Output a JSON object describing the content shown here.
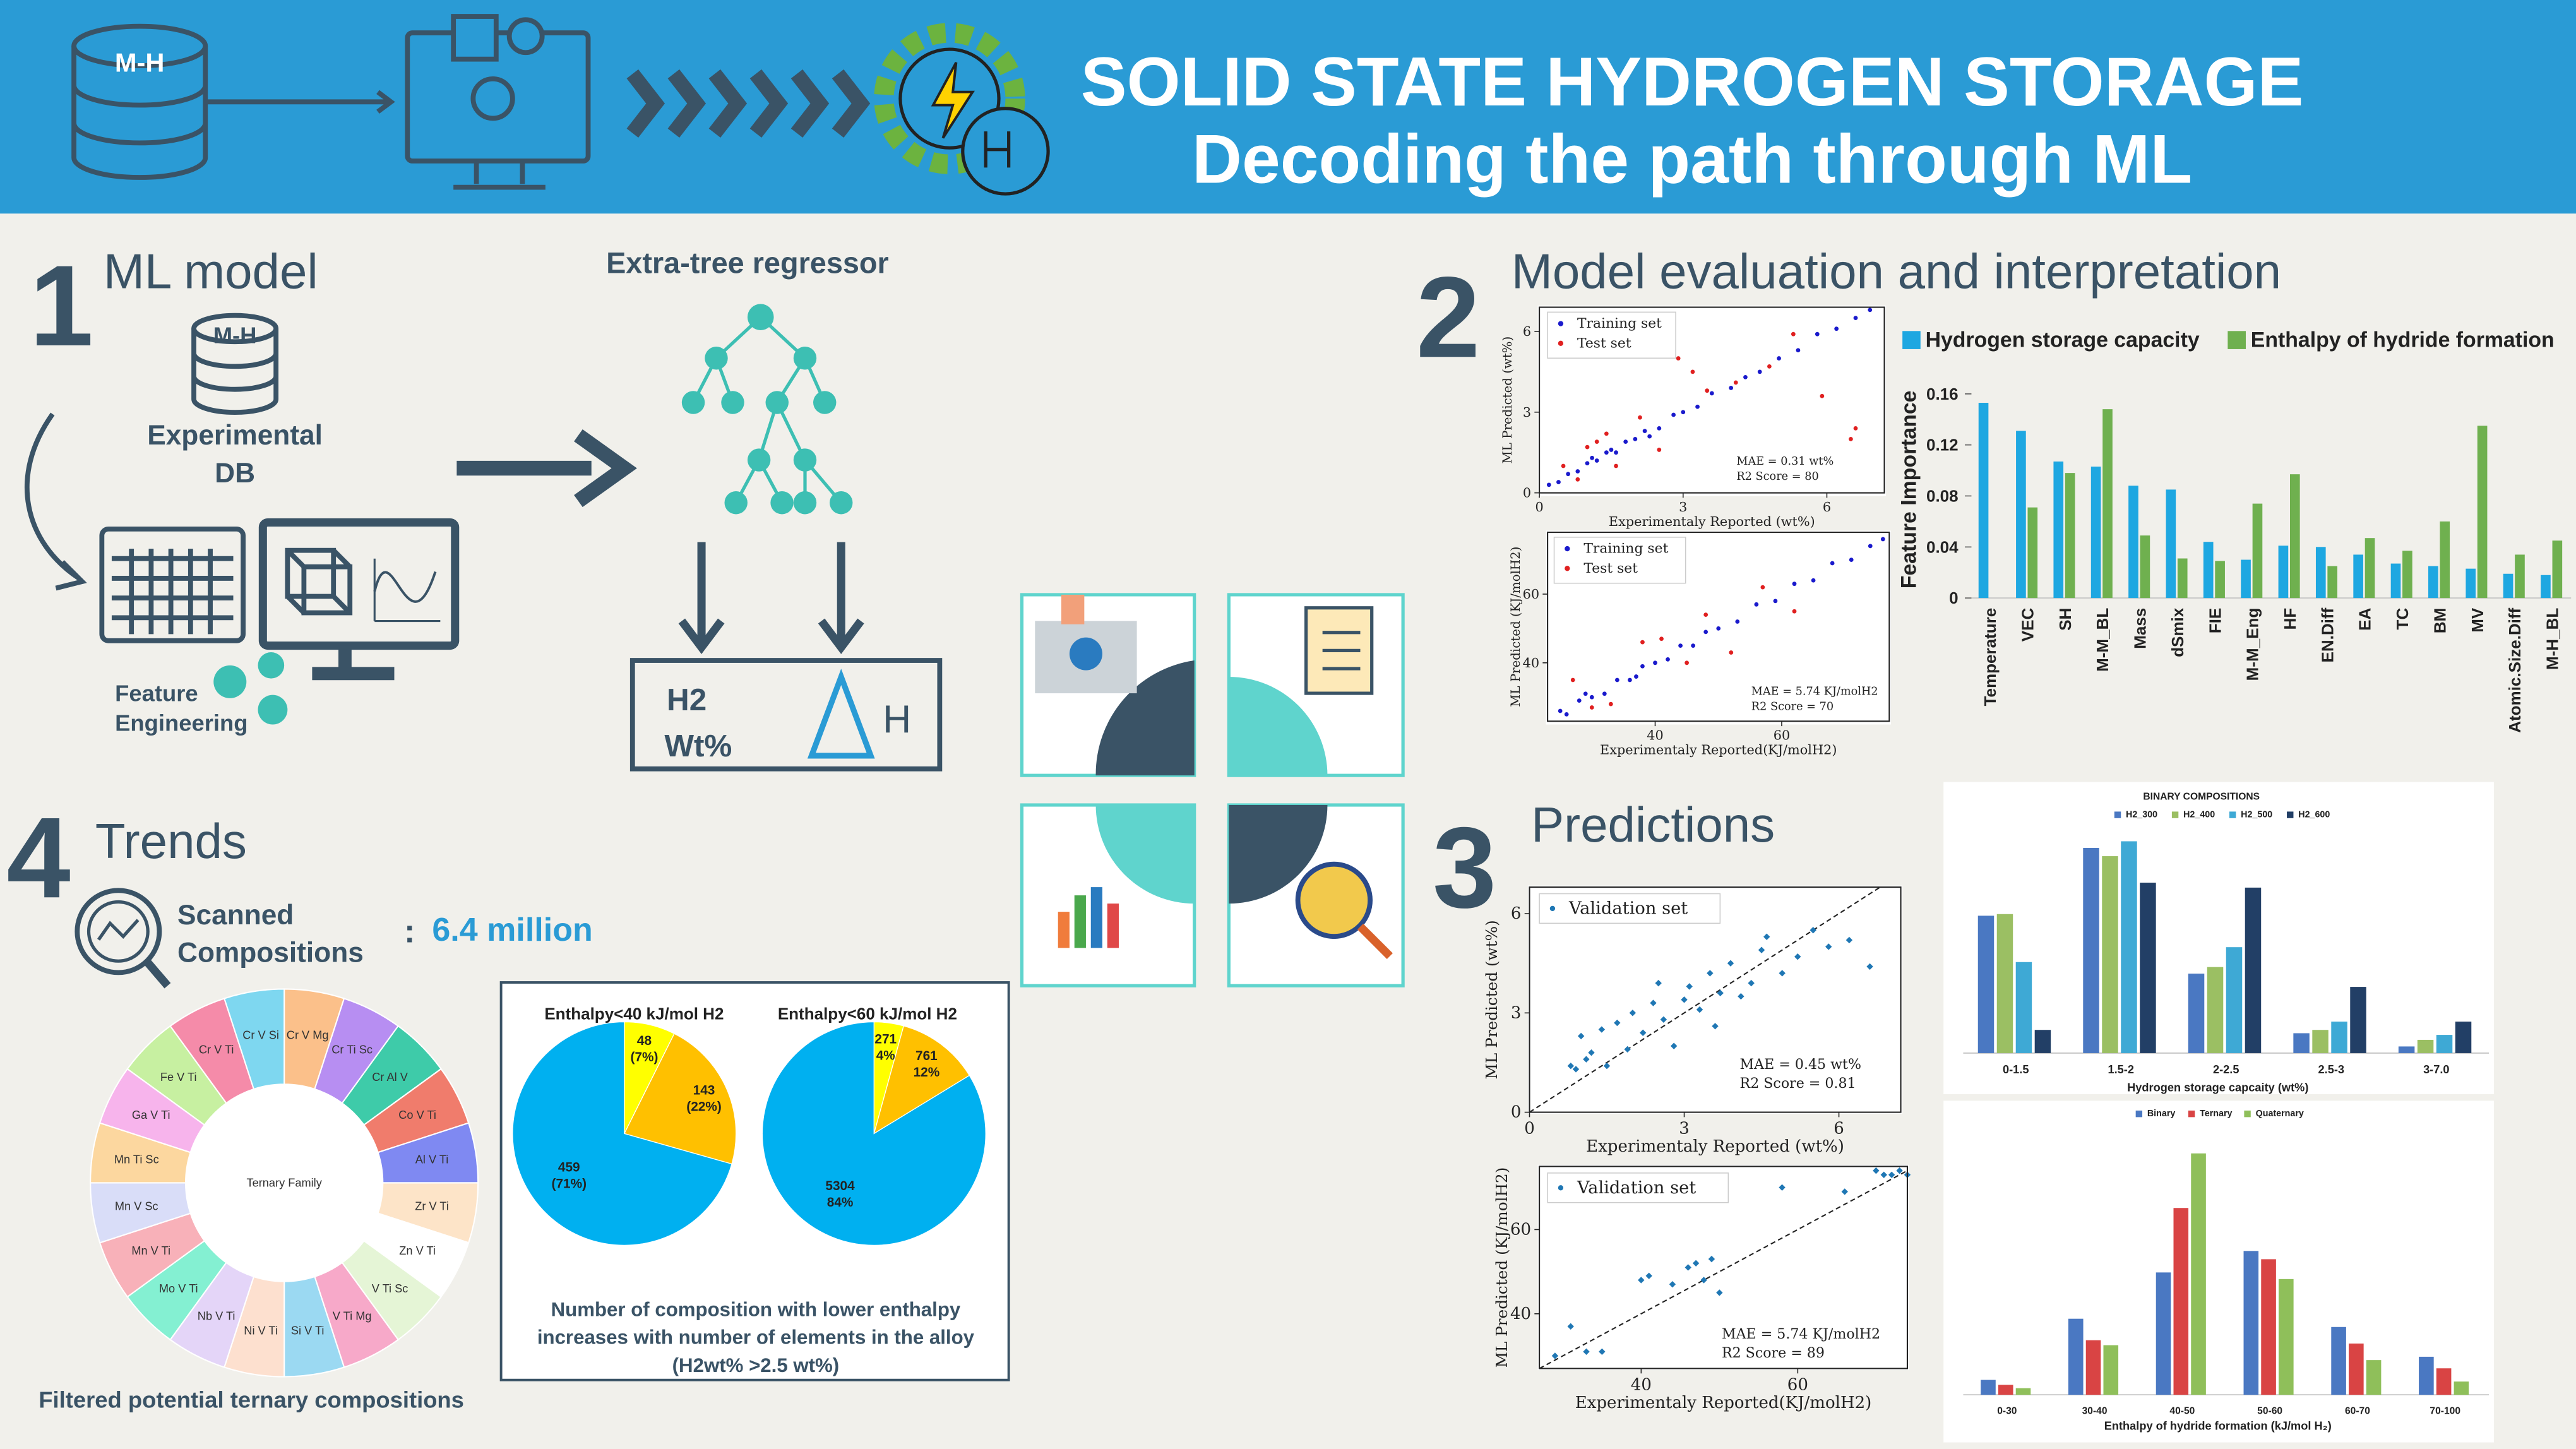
{
  "header": {
    "title_line1": "SOLID STATE HYDROGEN STORAGE",
    "title_line2": "Decoding the path through ML",
    "db_label": "M-H"
  },
  "section1": {
    "number": "1",
    "title": "ML model",
    "db_label": "M-H",
    "db_text": [
      "Experimental",
      "DB"
    ],
    "feature_text": [
      "Feature",
      "Engineering"
    ],
    "regressor": "Extra-tree regressor",
    "output_h2": [
      "H2",
      "Wt%"
    ],
    "output_enthalpy": "H"
  },
  "section2": {
    "number": "2",
    "title": "Model evaluation and interpretation"
  },
  "section3": {
    "number": "3",
    "title": "Predictions"
  },
  "section4": {
    "number": "4",
    "title": "Trends",
    "scanned": [
      "Scanned",
      "Compositions"
    ],
    "colon": ":",
    "count": "6.4 million",
    "donut_caption": "Filtered potential ternary compositions",
    "pie_caption": [
      "Number of composition with lower enthalpy",
      "increases with number of elements in the alloy",
      "(H2wt% >2.5 wt%)"
    ]
  },
  "donut": {
    "center_label": "Ternary Family",
    "segments": [
      {
        "label": "Cr V Mg",
        "color": "#fbc08a"
      },
      {
        "label": "Cr Ti Sc",
        "color": "#b78ef2"
      },
      {
        "label": "Cr Al V",
        "color": "#3ecba9"
      },
      {
        "label": "Co V Ti",
        "color": "#f07c6c"
      },
      {
        "label": "Al V Ti",
        "color": "#7f89f2"
      },
      {
        "label": "Zr V Ti",
        "color": "#fde4c8"
      },
      {
        "label": "Zn V Ti",
        "color": "#ffffff"
      },
      {
        "label": "V Ti Sc",
        "color": "#e5f5d6"
      },
      {
        "label": "V Ti Mg",
        "color": "#f7a9c9"
      },
      {
        "label": "Si V Ti",
        "color": "#9bd9f2"
      },
      {
        "label": "Ni V Ti",
        "color": "#fde0cf"
      },
      {
        "label": "Nb V Ti",
        "color": "#e4d5f8"
      },
      {
        "label": "Mo V Ti",
        "color": "#84f0d2"
      },
      {
        "label": "Mn V Ti",
        "color": "#f8b1b9"
      },
      {
        "label": "Mn V Sc",
        "color": "#d9ddf8"
      },
      {
        "label": "Mn Ti Sc",
        "color": "#fcd79f"
      },
      {
        "label": "Ga V Ti",
        "color": "#f7b4ec"
      },
      {
        "label": "Fe V Ti",
        "color": "#c7f0a1"
      },
      {
        "label": "Cr V Ti",
        "color": "#f58ba9"
      },
      {
        "label": "Cr V Si",
        "color": "#7ed7f0"
      }
    ]
  },
  "chart_data": [
    {
      "type": "bar",
      "y_label": "Feature Importance",
      "categories": [
        "Temperature",
        "VEC",
        "SH",
        "M-M_BL",
        "Mass",
        "dSmix",
        "FIE",
        "M-M_Eng",
        "HF",
        "EN.Diff",
        "EA",
        "TC",
        "BM",
        "MV",
        "Atomic.Size.Diff",
        "M-H_BL"
      ],
      "series": [
        {
          "name": "Hydrogen storage capacity",
          "color": "#1ea7e1",
          "values": [
            0.153,
            0.131,
            0.107,
            0.103,
            0.088,
            0.085,
            0.044,
            0.03,
            0.041,
            0.04,
            0.034,
            0.027,
            0.025,
            0.023,
            0.019,
            0.018
          ]
        },
        {
          "name": "Enthalpy of hydride formation",
          "color": "#6fb04f",
          "values": [
            null,
            0.071,
            0.098,
            0.148,
            0.049,
            0.031,
            0.029,
            0.074,
            0.097,
            0.025,
            0.047,
            0.037,
            0.06,
            0.135,
            0.034,
            0.045
          ]
        }
      ],
      "ylim": [
        0,
        0.17
      ],
      "yticks": [
        0,
        0.04,
        0.08,
        0.12,
        0.16
      ]
    },
    {
      "type": "scatter",
      "x_label": "Experimentaly Reported (wt%)",
      "y_label": "ML Predicted (wt%)",
      "annotations": [
        "MAE = 0.31 wt%",
        "R2 Score = 80"
      ],
      "xlim": [
        0,
        7.2
      ],
      "ylim": [
        0,
        6.9
      ],
      "xticks": [
        0,
        3,
        6
      ],
      "yticks": [
        0,
        3,
        6
      ],
      "diagonal": false,
      "series": [
        {
          "name": "Training set",
          "color": "#1a1acc",
          "x": [
            0.2,
            0.4,
            0.6,
            0.8,
            1.0,
            1.2,
            1.4,
            1.6,
            1.8,
            2.0,
            2.2,
            2.5,
            2.8,
            3.0,
            3.3,
            3.6,
            4.0,
            4.3,
            4.6,
            5.0,
            5.4,
            5.8,
            6.2,
            6.6,
            6.9,
            1.1,
            1.5,
            2.3
          ],
          "values": [
            0.3,
            0.4,
            0.7,
            0.8,
            1.1,
            1.2,
            1.5,
            1.5,
            1.9,
            2.0,
            2.3,
            2.4,
            2.9,
            3.0,
            3.2,
            3.7,
            3.9,
            4.3,
            4.5,
            5.0,
            5.3,
            5.9,
            6.1,
            6.5,
            6.8,
            1.3,
            1.6,
            2.1
          ]
        },
        {
          "name": "Test set",
          "color": "#e02020",
          "x": [
            0.5,
            0.8,
            1.0,
            1.4,
            1.6,
            2.1,
            2.5,
            3.2,
            3.5,
            4.1,
            4.8,
            5.3,
            5.9,
            6.5,
            6.6,
            2.9,
            1.2
          ],
          "values": [
            1.0,
            0.5,
            1.7,
            2.2,
            1.0,
            2.8,
            1.6,
            4.5,
            3.8,
            4.1,
            4.7,
            5.9,
            3.6,
            2.0,
            2.4,
            5.0,
            1.9
          ]
        }
      ]
    },
    {
      "type": "scatter",
      "x_label": "Experimentaly Reported(KJ/molH2)",
      "y_label": "ML Predicted (KJ/molH2)",
      "annotations": [
        "MAE = 5.74 KJ/molH2",
        "R2 Score = 70"
      ],
      "xlim": [
        23,
        77
      ],
      "ylim": [
        23,
        78
      ],
      "xticks": [
        40,
        60
      ],
      "yticks": [
        40,
        60
      ],
      "diagonal": false,
      "series": [
        {
          "name": "Training set",
          "color": "#1a1acc",
          "x": [
            25,
            26,
            28,
            30,
            32,
            34,
            36,
            38,
            40,
            42,
            44,
            46,
            48,
            50,
            53,
            56,
            59,
            62,
            65,
            68,
            71,
            74,
            76,
            29,
            37
          ],
          "values": [
            26,
            25,
            29,
            30,
            31,
            35,
            35,
            39,
            40,
            41,
            45,
            45,
            49,
            50,
            52,
            57,
            58,
            63,
            64,
            69,
            70,
            74,
            76,
            31,
            36
          ]
        },
        {
          "name": "Test set",
          "color": "#e02020",
          "x": [
            27,
            33,
            38,
            45,
            48,
            52,
            57,
            62,
            30,
            41
          ],
          "values": [
            35,
            28,
            46,
            40,
            54,
            43,
            62,
            55,
            27,
            47
          ]
        }
      ]
    },
    {
      "type": "scatter",
      "x_label": "Experimentaly Reported (wt%)",
      "y_label": "ML Predicted (wt%)",
      "annotations": [
        "MAE = 0.45 wt%",
        "R2 Score = 0.81"
      ],
      "xlim": [
        0,
        7.2
      ],
      "ylim": [
        0,
        6.8
      ],
      "xticks": [
        0,
        3,
        6
      ],
      "yticks": [
        0,
        3,
        6
      ],
      "diagonal": true,
      "series": [
        {
          "name": "Validation set",
          "color": "#1f77b4",
          "x": [
            0.8,
            1.0,
            1.2,
            1.4,
            1.5,
            1.7,
            1.9,
            2.0,
            2.2,
            2.4,
            2.6,
            2.8,
            3.0,
            3.1,
            3.3,
            3.5,
            3.7,
            3.9,
            4.1,
            4.3,
            4.6,
            4.9,
            5.2,
            5.5,
            5.8,
            6.2,
            6.6,
            1.1,
            2.5,
            3.6,
            4.5,
            0.9
          ],
          "values": [
            1.4,
            2.3,
            1.8,
            2.5,
            1.4,
            2.7,
            1.9,
            3.0,
            2.4,
            3.3,
            2.8,
            2.0,
            3.4,
            3.8,
            3.1,
            4.2,
            3.6,
            4.5,
            3.5,
            3.9,
            5.3,
            4.2,
            4.7,
            5.5,
            5.0,
            5.2,
            4.4,
            1.6,
            3.9,
            2.6,
            4.9,
            1.3
          ]
        }
      ]
    },
    {
      "type": "scatter",
      "x_label": "Experimentaly Reported(KJ/molH2)",
      "y_label": "ML Predicted (KJ/molH2)",
      "annotations": [
        "MAE = 5.74 KJ/molH2",
        "R2 Score = 89"
      ],
      "xlim": [
        27,
        74
      ],
      "ylim": [
        27,
        75
      ],
      "xticks": [
        40,
        60
      ],
      "yticks": [
        40,
        60
      ],
      "diagonal": true,
      "series": [
        {
          "name": "Validation set",
          "color": "#1f77b4",
          "x": [
            29,
            31,
            33,
            35,
            40,
            41,
            44,
            46,
            47,
            48,
            49,
            50,
            58,
            66,
            70,
            71,
            72,
            73,
            74
          ],
          "values": [
            30,
            37,
            31,
            31,
            48,
            49,
            47,
            51,
            52,
            48,
            53,
            45,
            70,
            69,
            74,
            73,
            73,
            74,
            73
          ]
        }
      ]
    },
    {
      "type": "bar",
      "title": "BINARY COMPOSITIONS",
      "x_label": "Hydrogen storage capcaity (wt%)",
      "categories": [
        "0-1.5",
        "1.5-2",
        "2-2.5",
        "2.5-3",
        "3-7.0"
      ],
      "series": [
        {
          "name": "H2_300",
          "color": "#4a78c2",
          "values": [
            83,
            124,
            48,
            12,
            4
          ]
        },
        {
          "name": "H2_400",
          "color": "#9bbf63",
          "values": [
            84,
            119,
            52,
            14,
            8
          ]
        },
        {
          "name": "H2_500",
          "color": "#3ea9d5",
          "values": [
            55,
            128,
            64,
            19,
            11
          ]
        },
        {
          "name": "H2_600",
          "color": "#223f66",
          "values": [
            14,
            103,
            100,
            40,
            19
          ]
        }
      ],
      "ylim": [
        0,
        140
      ]
    },
    {
      "type": "bar",
      "x_label": "Enthalpy of hydride formation (kJ/mol H₂)",
      "categories": [
        "0-30",
        "30-40",
        "40-50",
        "50-60",
        "60-70",
        "70-100"
      ],
      "series": [
        {
          "name": "Binary",
          "color": "#4a78c2",
          "values": [
            9,
            46,
            74,
            87,
            41,
            23
          ]
        },
        {
          "name": "Ternary",
          "color": "#d94444",
          "values": [
            6,
            33,
            113,
            82,
            31,
            16
          ]
        },
        {
          "name": "Quaternary",
          "color": "#8fbf5a",
          "values": [
            4,
            30,
            146,
            70,
            21,
            8
          ]
        }
      ],
      "ylim": [
        0,
        158
      ]
    },
    {
      "type": "pie",
      "title": "Enthalpy<40 kJ/mol H2",
      "values": [
        48,
        143,
        459
      ],
      "value_labels": [
        "48 (7%)",
        "143 (22%)",
        "459 (71%)"
      ],
      "colors": [
        "#ffff00",
        "#ffc000",
        "#00b0f0"
      ]
    },
    {
      "type": "pie",
      "title": "Enthalpy<60 kJ/mol H2",
      "values": [
        271,
        761,
        5304
      ],
      "value_labels": [
        "271 4%",
        "761 12%",
        "5304 84%"
      ],
      "colors": [
        "#ffff00",
        "#ffc000",
        "#00b0f0"
      ]
    }
  ]
}
